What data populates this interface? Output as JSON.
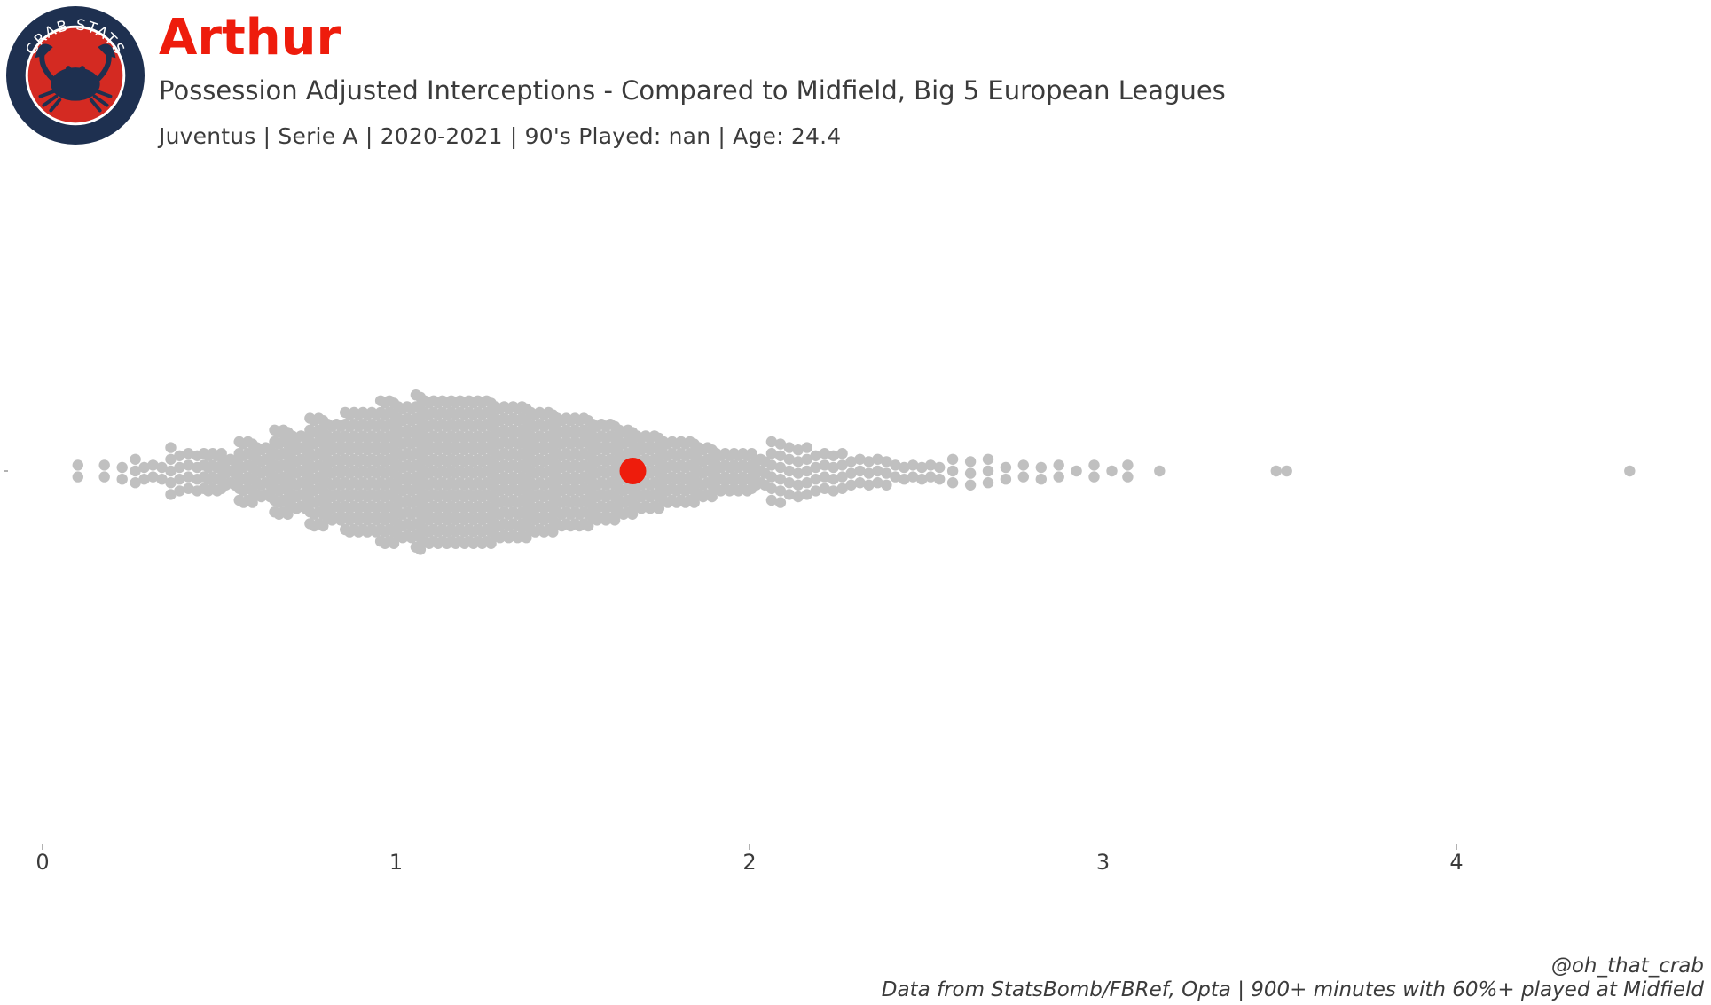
{
  "header": {
    "player_name": "Arthur",
    "subtitle": "Possession Adjusted Interceptions - Compared to Midfield, Big 5 European Leagues",
    "info_line": "Juventus  | Serie A | 2020-2021 | 90's Played: nan | Age: 24.4"
  },
  "logo": {
    "text": "CRAB STATS",
    "icon": "crab-icon",
    "colors": {
      "ring": "#1e3050",
      "inner": "#d42a22",
      "crab": "#1e3050",
      "rim": "#ffffff"
    }
  },
  "footer": {
    "handle": "@oh_that_crab",
    "source": "Data from StatsBomb/FBRef, Opta | 900+ minutes with 60%+ played at Midfield"
  },
  "chart_data": {
    "type": "scatter",
    "subtype": "beeswarm",
    "title": "",
    "xlabel": "",
    "ylabel": "",
    "xlim": [
      -0.1,
      4.7
    ],
    "x_ticks": [
      0,
      1,
      2,
      3,
      4
    ],
    "grid": false,
    "highlight": {
      "label": "Arthur",
      "value": 1.67,
      "color": "#ee1c0c"
    },
    "point_color": "#c0c0c0",
    "distribution": [
      {
        "x": 0.1,
        "count": 2
      },
      {
        "x": 0.2,
        "count": 4
      },
      {
        "x": 0.3,
        "count": 9
      },
      {
        "x": 0.4,
        "count": 17
      },
      {
        "x": 0.5,
        "count": 29
      },
      {
        "x": 0.6,
        "count": 44
      },
      {
        "x": 0.7,
        "count": 60
      },
      {
        "x": 0.8,
        "count": 76
      },
      {
        "x": 0.9,
        "count": 88
      },
      {
        "x": 1.0,
        "count": 100
      },
      {
        "x": 1.1,
        "count": 106
      },
      {
        "x": 1.2,
        "count": 104
      },
      {
        "x": 1.3,
        "count": 98
      },
      {
        "x": 1.4,
        "count": 90
      },
      {
        "x": 1.5,
        "count": 80
      },
      {
        "x": 1.6,
        "count": 70
      },
      {
        "x": 1.7,
        "count": 58
      },
      {
        "x": 1.8,
        "count": 48
      },
      {
        "x": 1.9,
        "count": 36
      },
      {
        "x": 2.0,
        "count": 29
      },
      {
        "x": 2.1,
        "count": 22
      },
      {
        "x": 2.2,
        "count": 17
      },
      {
        "x": 2.3,
        "count": 13
      },
      {
        "x": 2.4,
        "count": 10
      },
      {
        "x": 2.5,
        "count": 8
      },
      {
        "x": 2.6,
        "count": 6
      },
      {
        "x": 2.7,
        "count": 5
      },
      {
        "x": 2.8,
        "count": 4
      },
      {
        "x": 2.9,
        "count": 3
      },
      {
        "x": 3.0,
        "count": 3
      },
      {
        "x": 3.07,
        "count": 2
      },
      {
        "x": 3.16,
        "count": 1
      },
      {
        "x": 3.49,
        "count": 1
      },
      {
        "x": 3.52,
        "count": 1
      },
      {
        "x": 4.49,
        "count": 1
      }
    ]
  }
}
